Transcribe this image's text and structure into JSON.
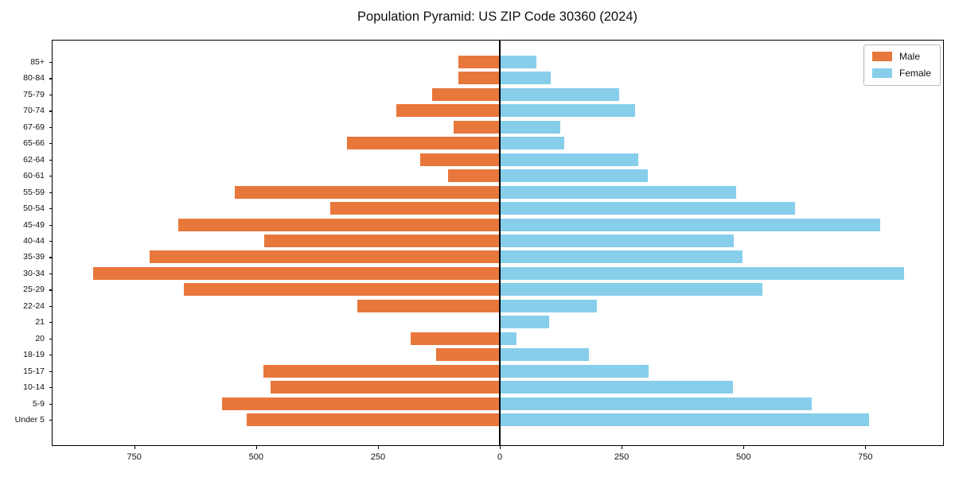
{
  "title": "Population Pyramid: US ZIP Code 30360 (2024)",
  "chart_data": {
    "type": "bar",
    "orientation": "horizontal-pyramid",
    "title": "Population Pyramid: US ZIP Code 30360 (2024)",
    "categories": [
      "85+",
      "80-84",
      "75-79",
      "70-74",
      "67-69",
      "65-66",
      "62-64",
      "60-61",
      "55-59",
      "50-54",
      "45-49",
      "40-44",
      "35-39",
      "30-34",
      "25-29",
      "22-24",
      "21",
      "20",
      "18-19",
      "15-17",
      "10-14",
      "5-9",
      "Under 5"
    ],
    "series": [
      {
        "name": "Male",
        "side": "left",
        "color": "#E8773B",
        "values": [
          85,
          85,
          139,
          212,
          95,
          314,
          163,
          106,
          543,
          348,
          660,
          483,
          719,
          835,
          649,
          293,
          0,
          183,
          131,
          485,
          470,
          570,
          519
        ]
      },
      {
        "name": "Female",
        "side": "right",
        "color": "#87CEEB",
        "values": [
          75,
          105,
          245,
          277,
          124,
          133,
          284,
          304,
          485,
          605,
          780,
          480,
          498,
          829,
          539,
          200,
          101,
          35,
          183,
          305,
          479,
          640,
          758
        ]
      }
    ],
    "x_axis": {
      "tick_values": [
        -750,
        -500,
        -250,
        0,
        250,
        500,
        750
      ],
      "tick_labels": [
        "750",
        "500",
        "250",
        "0",
        "250",
        "500",
        "750"
      ],
      "xlim": [
        -918,
        910
      ]
    },
    "y_axis": {
      "label": "",
      "categories_top_to_bottom": true
    },
    "legend": {
      "position": "upper-right",
      "entries": [
        "Male",
        "Female"
      ]
    },
    "grid": false,
    "center_line": true,
    "colors": {
      "male": "#E8773B",
      "female": "#87CEEB",
      "axis": "#000000",
      "background": "#FFFFFF"
    }
  }
}
